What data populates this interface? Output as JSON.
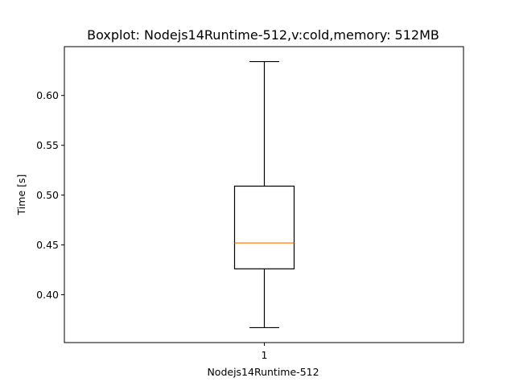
{
  "chart_data": {
    "type": "boxplot",
    "title": "Boxplot: Nodejs14Runtime-512,v:cold,memory: 512MB",
    "xlabel": "Nodejs14Runtime-512",
    "ylabel": "Time [s]",
    "categories": [
      "1"
    ],
    "boxes": [
      {
        "category": "1",
        "whisker_low": 0.367,
        "q1": 0.426,
        "median": 0.452,
        "q3": 0.509,
        "whisker_high": 0.634
      }
    ],
    "ylim": [
      0.352,
      0.649
    ],
    "yticks": [
      0.4,
      0.45,
      0.5,
      0.55,
      0.6
    ],
    "ytick_labels": [
      "0.40",
      "0.45",
      "0.50",
      "0.55",
      "0.60"
    ],
    "grid": false,
    "colors": {
      "box": "#000000",
      "median": "#ff7f0e",
      "whisker": "#000000"
    }
  }
}
